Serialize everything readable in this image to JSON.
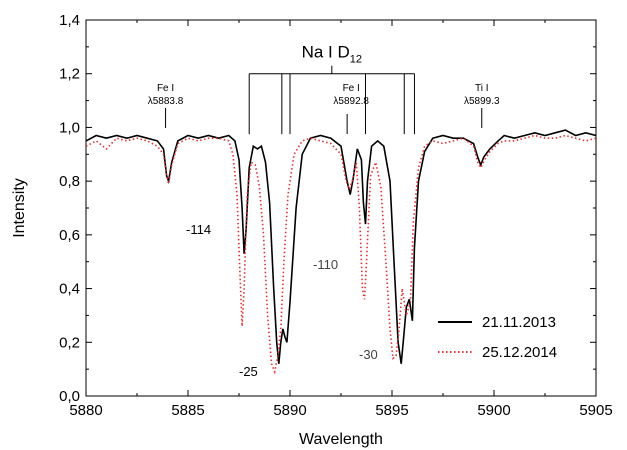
{
  "chart_data": {
    "type": "line",
    "xlabel": "Wavelength",
    "ylabel": "Intensity",
    "xlim": [
      5880,
      5905
    ],
    "ylim": [
      0.0,
      1.4
    ],
    "xticks": [
      5880,
      5885,
      5890,
      5895,
      5900,
      5905
    ],
    "xtick_labels": [
      "5880",
      "5885",
      "5890",
      "5895",
      "5900",
      "5905"
    ],
    "yticks": [
      0.0,
      0.2,
      0.4,
      0.6,
      0.8,
      1.0,
      1.2,
      1.4
    ],
    "ytick_labels": [
      "0,0",
      "0,2",
      "0,4",
      "0,6",
      "0,8",
      "1,0",
      "1,2",
      "1,4"
    ],
    "legend_position": "bottom-right",
    "series": [
      {
        "name": "21.11.2013",
        "color": "#000000",
        "style": "solid",
        "points": [
          [
            5880.0,
            0.95
          ],
          [
            5880.5,
            0.97
          ],
          [
            5881.0,
            0.96
          ],
          [
            5881.5,
            0.97
          ],
          [
            5882.0,
            0.96
          ],
          [
            5882.5,
            0.97
          ],
          [
            5883.0,
            0.96
          ],
          [
            5883.5,
            0.95
          ],
          [
            5883.8,
            0.92
          ],
          [
            5883.95,
            0.82
          ],
          [
            5884.05,
            0.8
          ],
          [
            5884.2,
            0.87
          ],
          [
            5884.5,
            0.95
          ],
          [
            5885.0,
            0.97
          ],
          [
            5885.5,
            0.96
          ],
          [
            5886.0,
            0.97
          ],
          [
            5886.5,
            0.96
          ],
          [
            5887.0,
            0.97
          ],
          [
            5887.3,
            0.95
          ],
          [
            5887.5,
            0.88
          ],
          [
            5887.65,
            0.7
          ],
          [
            5887.75,
            0.53
          ],
          [
            5887.85,
            0.62
          ],
          [
            5888.0,
            0.85
          ],
          [
            5888.2,
            0.93
          ],
          [
            5888.4,
            0.92
          ],
          [
            5888.6,
            0.93
          ],
          [
            5888.8,
            0.87
          ],
          [
            5889.0,
            0.72
          ],
          [
            5889.2,
            0.4
          ],
          [
            5889.35,
            0.2
          ],
          [
            5889.45,
            0.12
          ],
          [
            5889.55,
            0.2
          ],
          [
            5889.65,
            0.25
          ],
          [
            5889.75,
            0.22
          ],
          [
            5889.85,
            0.2
          ],
          [
            5890.0,
            0.35
          ],
          [
            5890.3,
            0.7
          ],
          [
            5890.6,
            0.9
          ],
          [
            5891.0,
            0.96
          ],
          [
            5891.5,
            0.97
          ],
          [
            5892.0,
            0.96
          ],
          [
            5892.5,
            0.93
          ],
          [
            5892.8,
            0.8
          ],
          [
            5892.95,
            0.75
          ],
          [
            5893.1,
            0.81
          ],
          [
            5893.3,
            0.92
          ],
          [
            5893.5,
            0.88
          ],
          [
            5893.6,
            0.72
          ],
          [
            5893.7,
            0.64
          ],
          [
            5893.8,
            0.8
          ],
          [
            5894.0,
            0.93
          ],
          [
            5894.3,
            0.95
          ],
          [
            5894.6,
            0.93
          ],
          [
            5894.9,
            0.8
          ],
          [
            5895.1,
            0.5
          ],
          [
            5895.3,
            0.2
          ],
          [
            5895.45,
            0.12
          ],
          [
            5895.55,
            0.2
          ],
          [
            5895.7,
            0.33
          ],
          [
            5895.85,
            0.36
          ],
          [
            5896.0,
            0.28
          ],
          [
            5896.1,
            0.55
          ],
          [
            5896.3,
            0.8
          ],
          [
            5896.6,
            0.91
          ],
          [
            5897.0,
            0.96
          ],
          [
            5897.5,
            0.97
          ],
          [
            5898.0,
            0.96
          ],
          [
            5898.5,
            0.96
          ],
          [
            5899.0,
            0.94
          ],
          [
            5899.2,
            0.89
          ],
          [
            5899.35,
            0.86
          ],
          [
            5899.5,
            0.89
          ],
          [
            5899.8,
            0.92
          ],
          [
            5900.2,
            0.95
          ],
          [
            5900.5,
            0.97
          ],
          [
            5901.0,
            0.96
          ],
          [
            5901.5,
            0.97
          ],
          [
            5902.0,
            0.98
          ],
          [
            5902.5,
            0.97
          ],
          [
            5903.0,
            0.98
          ],
          [
            5903.5,
            0.99
          ],
          [
            5904.0,
            0.97
          ],
          [
            5904.5,
            0.98
          ],
          [
            5905.0,
            0.97
          ]
        ]
      },
      {
        "name": "25.12.2014",
        "color": "#e03030",
        "style": "dotted",
        "points": [
          [
            5880.0,
            0.93
          ],
          [
            5880.5,
            0.95
          ],
          [
            5881.0,
            0.92
          ],
          [
            5881.5,
            0.96
          ],
          [
            5882.0,
            0.95
          ],
          [
            5882.5,
            0.96
          ],
          [
            5883.0,
            0.95
          ],
          [
            5883.5,
            0.93
          ],
          [
            5883.8,
            0.9
          ],
          [
            5883.95,
            0.82
          ],
          [
            5884.05,
            0.79
          ],
          [
            5884.2,
            0.86
          ],
          [
            5884.5,
            0.94
          ],
          [
            5885.0,
            0.96
          ],
          [
            5885.5,
            0.95
          ],
          [
            5886.0,
            0.96
          ],
          [
            5886.5,
            0.96
          ],
          [
            5887.0,
            0.95
          ],
          [
            5887.2,
            0.9
          ],
          [
            5887.4,
            0.75
          ],
          [
            5887.55,
            0.45
          ],
          [
            5887.65,
            0.26
          ],
          [
            5887.75,
            0.4
          ],
          [
            5887.9,
            0.75
          ],
          [
            5888.1,
            0.87
          ],
          [
            5888.3,
            0.86
          ],
          [
            5888.5,
            0.78
          ],
          [
            5888.7,
            0.6
          ],
          [
            5888.9,
            0.3
          ],
          [
            5889.1,
            0.12
          ],
          [
            5889.25,
            0.09
          ],
          [
            5889.4,
            0.15
          ],
          [
            5889.55,
            0.25
          ],
          [
            5889.7,
            0.5
          ],
          [
            5889.9,
            0.75
          ],
          [
            5890.2,
            0.9
          ],
          [
            5890.6,
            0.95
          ],
          [
            5891.0,
            0.96
          ],
          [
            5891.5,
            0.95
          ],
          [
            5892.0,
            0.94
          ],
          [
            5892.5,
            0.9
          ],
          [
            5892.75,
            0.8
          ],
          [
            5892.9,
            0.77
          ],
          [
            5893.05,
            0.8
          ],
          [
            5893.25,
            0.87
          ],
          [
            5893.4,
            0.7
          ],
          [
            5893.55,
            0.4
          ],
          [
            5893.65,
            0.36
          ],
          [
            5893.75,
            0.5
          ],
          [
            5893.95,
            0.82
          ],
          [
            5894.2,
            0.87
          ],
          [
            5894.45,
            0.78
          ],
          [
            5894.7,
            0.5
          ],
          [
            5894.9,
            0.25
          ],
          [
            5895.05,
            0.14
          ],
          [
            5895.2,
            0.15
          ],
          [
            5895.35,
            0.25
          ],
          [
            5895.5,
            0.4
          ],
          [
            5895.7,
            0.3
          ],
          [
            5895.9,
            0.35
          ],
          [
            5896.05,
            0.65
          ],
          [
            5896.3,
            0.85
          ],
          [
            5896.6,
            0.93
          ],
          [
            5897.0,
            0.95
          ],
          [
            5897.5,
            0.94
          ],
          [
            5898.0,
            0.95
          ],
          [
            5898.5,
            0.96
          ],
          [
            5899.0,
            0.93
          ],
          [
            5899.2,
            0.87
          ],
          [
            5899.35,
            0.85
          ],
          [
            5899.55,
            0.88
          ],
          [
            5899.8,
            0.91
          ],
          [
            5900.2,
            0.94
          ],
          [
            5900.5,
            0.95
          ],
          [
            5901.0,
            0.95
          ],
          [
            5901.5,
            0.96
          ],
          [
            5902.0,
            0.97
          ],
          [
            5902.5,
            0.96
          ],
          [
            5903.0,
            0.96
          ],
          [
            5903.5,
            0.97
          ],
          [
            5904.0,
            0.96
          ],
          [
            5904.5,
            0.95
          ],
          [
            5905.0,
            0.96
          ]
        ]
      }
    ],
    "annotations": {
      "na_title": "Na I D",
      "na_title_sub": "12",
      "fe1_name": "Fe I",
      "fe1_wave": "λ5883.8",
      "fe2_name": "Fe I",
      "fe2_wave": "λ5892.8",
      "ti_name": "Ti I",
      "ti_wave": "λ5899.3",
      "v_114": "-114",
      "v_110": "-110",
      "v_25": "-25",
      "v_30": "-30"
    },
    "na_markers": {
      "left_group_x": [
        5888.0,
        5889.6,
        5890.0
      ],
      "right_group_x": [
        5893.7,
        5895.6,
        5896.1
      ],
      "left_group_top": 1.19,
      "right_group_top": 1.19,
      "bar_top": 1.2
    }
  }
}
